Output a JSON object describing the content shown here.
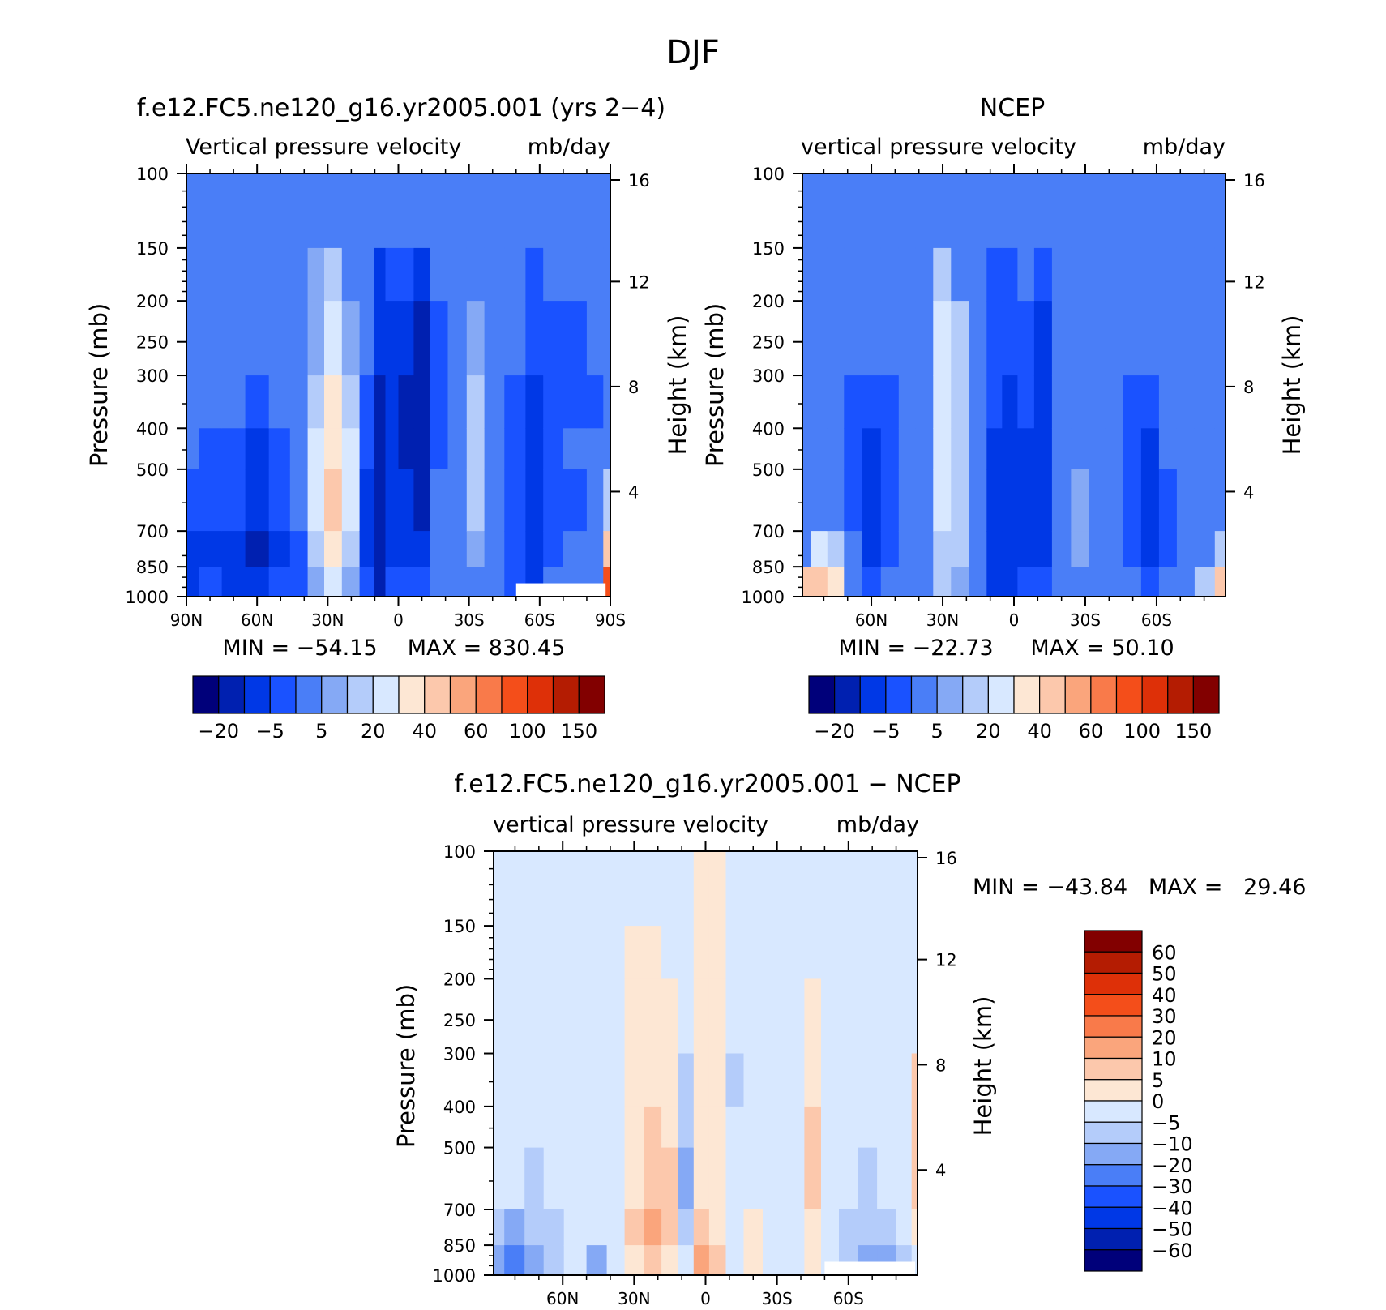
{
  "figure_title": "DJF",
  "chart_data": [
    {
      "type": "heatmap",
      "title": "f.e12.FC5.ne120_g16.yr2005.001 (yrs 2−4)",
      "left_subtitle": "Vertical pressure velocity",
      "right_subtitle": "mb/day",
      "ylabel": "Pressure (mb)",
      "y2label": "Height (km)",
      "xlabel": "",
      "x_ticks": [
        "90N",
        "60N",
        "30N",
        "0",
        "30S",
        "60S",
        "90S"
      ],
      "x_tick_values": [
        90,
        60,
        30,
        0,
        -30,
        -60,
        -90
      ],
      "xlim": [
        90,
        -90
      ],
      "y_ticks": [
        100,
        150,
        200,
        250,
        300,
        400,
        500,
        700,
        850,
        1000
      ],
      "ylim": [
        1000,
        100
      ],
      "y_scale": "log",
      "y2_ticks": [
        4,
        8,
        12,
        16
      ],
      "min_label": "MIN = −54.15",
      "max_label": "MAX = 830.45",
      "min_value": -54.15,
      "max_value": 830.45,
      "colorbar": {
        "orientation": "horizontal",
        "tick_labels": [
          "−20",
          "−5",
          "5",
          "20",
          "40",
          "60",
          "100",
          "150"
        ],
        "colors": [
          "#00007a",
          "#0020b0",
          "#0038e6",
          "#1a52ff",
          "#4a7ef7",
          "#85a9f5",
          "#b4ccfa",
          "#d8e8ff",
          "#fde7d4",
          "#fcc8ac",
          "#faa57c",
          "#f97a4a",
          "#f44e1a",
          "#de3008",
          "#b41c02",
          "#820000"
        ]
      },
      "columns": [
        {
          "lat": 89,
          "v": [
            -3,
            -3,
            -3,
            -5,
            -5,
            -10,
            -15,
            -20
          ]
        },
        {
          "lat": 80,
          "v": [
            -3,
            -3,
            -2,
            -5,
            -8,
            -10,
            -15,
            -10
          ]
        },
        {
          "lat": 70,
          "v": [
            -3,
            -3,
            -3,
            -5,
            -10,
            -10,
            -15,
            -20
          ]
        },
        {
          "lat": 60,
          "v": [
            -3,
            -3,
            -3,
            -10,
            -15,
            -20,
            -30,
            -20
          ]
        },
        {
          "lat": 50,
          "v": [
            -3,
            -3,
            -3,
            -5,
            -10,
            -10,
            -15,
            -10
          ]
        },
        {
          "lat": 42,
          "v": [
            -3,
            -3,
            -3,
            -5,
            -5,
            -5,
            -10,
            -10
          ]
        },
        {
          "lat": 35,
          "v": [
            -1,
            2,
            2,
            5,
            10,
            10,
            5,
            2
          ]
        },
        {
          "lat": 28,
          "v": [
            -1,
            5,
            10,
            20,
            25,
            30,
            25,
            10
          ]
        },
        {
          "lat": 20,
          "v": [
            -1,
            -1,
            3,
            5,
            10,
            10,
            5,
            2
          ]
        },
        {
          "lat": 13,
          "v": [
            -3,
            -5,
            -5,
            -10,
            -10,
            -15,
            -15,
            -10
          ]
        },
        {
          "lat": 8,
          "v": [
            -5,
            -15,
            -20,
            -30,
            -30,
            -40,
            -40,
            -35
          ]
        },
        {
          "lat": 3,
          "v": [
            -5,
            -10,
            -15,
            -20,
            -20,
            -20,
            -15,
            -10
          ]
        },
        {
          "lat": -3,
          "v": [
            -5,
            -10,
            -20,
            -25,
            -25,
            -20,
            -15,
            -10
          ]
        },
        {
          "lat": -10,
          "v": [
            -5,
            -20,
            -30,
            -40,
            -35,
            -30,
            -20,
            -10
          ]
        },
        {
          "lat": -17,
          "v": [
            -3,
            -5,
            -10,
            -10,
            -10,
            -5,
            -3,
            -3
          ]
        },
        {
          "lat": -25,
          "v": [
            -3,
            -3,
            -3,
            -5,
            -3,
            -3,
            -1,
            -1
          ]
        },
        {
          "lat": -33,
          "v": [
            -3,
            -3,
            2,
            5,
            5,
            5,
            3,
            -1
          ]
        },
        {
          "lat": -40,
          "v": [
            -3,
            -3,
            -3,
            -3,
            -3,
            -3,
            -3,
            -3
          ]
        },
        {
          "lat": -50,
          "v": [
            -5,
            -5,
            -5,
            -10,
            -10,
            -10,
            -10,
            -10
          ]
        },
        {
          "lat": -58,
          "v": [
            -5,
            -10,
            -10,
            -15,
            -20,
            -20,
            -20,
            -15
          ]
        },
        {
          "lat": -65,
          "v": [
            -5,
            -5,
            -10,
            -10,
            -10,
            -10,
            -10,
            -5
          ]
        },
        {
          "lat": -75,
          "v": [
            -5,
            -5,
            -10,
            -10,
            -5,
            -10,
            -5,
            -5
          ]
        },
        {
          "lat": -85,
          "v": [
            -5,
            -5,
            -5,
            -10,
            -5,
            -5,
            -5,
            -3
          ]
        },
        {
          "lat": -89,
          "v": [
            -5,
            -3,
            -3,
            -3,
            -3,
            5,
            30,
            60
          ]
        }
      ]
    },
    {
      "type": "heatmap",
      "title": "NCEP",
      "left_subtitle": "vertical pressure velocity",
      "right_subtitle": "mb/day",
      "ylabel": "Pressure (mb)",
      "y2label": "Height (km)",
      "xlabel": "",
      "x_ticks": [
        "60N",
        "30N",
        "0",
        "30S",
        "60S"
      ],
      "x_tick_values": [
        60,
        30,
        0,
        -30,
        -60
      ],
      "xlim": [
        89,
        -89
      ],
      "y_ticks": [
        100,
        150,
        200,
        250,
        300,
        400,
        500,
        700,
        850,
        1000
      ],
      "ylim": [
        1000,
        100
      ],
      "y_scale": "log",
      "y2_ticks": [
        4,
        8,
        12,
        16
      ],
      "min_label": "MIN = −22.73",
      "max_label": "MAX = 50.10",
      "min_value": -22.73,
      "max_value": 50.1,
      "colorbar": {
        "orientation": "horizontal",
        "tick_labels": [
          "−20",
          "−5",
          "5",
          "20",
          "40",
          "60",
          "100",
          "150"
        ],
        "colors": [
          "#00007a",
          "#0020b0",
          "#0038e6",
          "#1a52ff",
          "#4a7ef7",
          "#85a9f5",
          "#b4ccfa",
          "#d8e8ff",
          "#fde7d4",
          "#fcc8ac",
          "#faa57c",
          "#f97a4a",
          "#f44e1a",
          "#de3008",
          "#b41c02",
          "#820000"
        ]
      },
      "columns": [
        {
          "lat": 89,
          "v": [
            -5,
            -5,
            -5,
            -5,
            -5,
            -3,
            -1,
            30
          ]
        },
        {
          "lat": 82,
          "v": [
            -5,
            -5,
            -5,
            -5,
            -3,
            -1,
            10,
            30
          ]
        },
        {
          "lat": 75,
          "v": [
            -5,
            -5,
            -5,
            -5,
            -3,
            -3,
            5,
            20
          ]
        },
        {
          "lat": 68,
          "v": [
            -5,
            -5,
            -5,
            -10,
            -10,
            -10,
            -5,
            -3
          ]
        },
        {
          "lat": 60,
          "v": [
            -5,
            -5,
            -5,
            -10,
            -15,
            -15,
            -20,
            -10
          ]
        },
        {
          "lat": 52,
          "v": [
            -5,
            -5,
            -5,
            -10,
            -10,
            -10,
            -10,
            -5
          ]
        },
        {
          "lat": 45,
          "v": [
            -5,
            -5,
            -5,
            -5,
            -5,
            -5,
            -5,
            -3
          ]
        },
        {
          "lat": 38,
          "v": [
            -5,
            -3,
            -3,
            -3,
            -3,
            -3,
            -3,
            -3
          ]
        },
        {
          "lat": 30,
          "v": [
            -3,
            5,
            10,
            10,
            10,
            10,
            5,
            5
          ]
        },
        {
          "lat": 23,
          "v": [
            -3,
            -3,
            5,
            5,
            5,
            5,
            5,
            3
          ]
        },
        {
          "lat": 15,
          "v": [
            -5,
            -5,
            -5,
            -5,
            -5,
            -5,
            -5,
            -5
          ]
        },
        {
          "lat": 8,
          "v": [
            -5,
            -10,
            -10,
            -10,
            -15,
            -20,
            -20,
            -15
          ]
        },
        {
          "lat": 2,
          "v": [
            -5,
            -10,
            -10,
            -15,
            -15,
            -20,
            -20,
            -15
          ]
        },
        {
          "lat": -5,
          "v": [
            -5,
            -5,
            -10,
            -10,
            -15,
            -15,
            -15,
            -10
          ]
        },
        {
          "lat": -12,
          "v": [
            -5,
            -10,
            -15,
            -20,
            -20,
            -15,
            -15,
            -10
          ]
        },
        {
          "lat": -20,
          "v": [
            -5,
            -5,
            -5,
            -5,
            -5,
            -5,
            -5,
            -5
          ]
        },
        {
          "lat": -28,
          "v": [
            -5,
            -5,
            -3,
            -3,
            -1,
            2,
            1,
            -1
          ]
        },
        {
          "lat": -35,
          "v": [
            -5,
            -5,
            -5,
            -3,
            -3,
            -3,
            -3,
            -3
          ]
        },
        {
          "lat": -42,
          "v": [
            -5,
            -5,
            -5,
            -5,
            -5,
            -5,
            -5,
            -5
          ]
        },
        {
          "lat": -50,
          "v": [
            -5,
            -5,
            -5,
            -10,
            -10,
            -10,
            -10,
            -5
          ]
        },
        {
          "lat": -57,
          "v": [
            -5,
            -5,
            -5,
            -10,
            -15,
            -15,
            -15,
            -10
          ]
        },
        {
          "lat": -65,
          "v": [
            -5,
            -5,
            -5,
            -5,
            -5,
            -10,
            -10,
            -5
          ]
        },
        {
          "lat": -72,
          "v": [
            -5,
            -5,
            -5,
            -5,
            -3,
            -3,
            -3,
            -3
          ]
        },
        {
          "lat": -80,
          "v": [
            -5,
            -5,
            -5,
            -3,
            -3,
            -3,
            -1,
            5
          ]
        },
        {
          "lat": -89,
          "v": [
            -5,
            -5,
            -3,
            -3,
            -3,
            -3,
            5,
            30
          ]
        }
      ]
    },
    {
      "type": "heatmap",
      "title": "f.e12.FC5.ne120_g16.yr2005.001 − NCEP",
      "left_subtitle": "vertical pressure velocity",
      "right_subtitle": "mb/day",
      "ylabel": "Pressure (mb)",
      "y2label": "Height (km)",
      "xlabel": "",
      "x_ticks": [
        "60N",
        "30N",
        "0",
        "30S",
        "60S"
      ],
      "x_tick_values": [
        60,
        30,
        0,
        -30,
        -60
      ],
      "xlim": [
        89,
        -89
      ],
      "y_ticks": [
        100,
        150,
        200,
        250,
        300,
        400,
        500,
        700,
        850,
        1000
      ],
      "ylim": [
        1000,
        100
      ],
      "y_scale": "log",
      "y2_ticks": [
        4,
        8,
        12,
        16
      ],
      "min_max_label": "MIN = −43.84   MAX =   29.46",
      "min_value": -43.84,
      "max_value": 29.46,
      "colorbar": {
        "orientation": "vertical",
        "tick_labels": [
          "60",
          "50",
          "40",
          "30",
          "20",
          "10",
          "5",
          "0",
          "−5",
          "−10",
          "−20",
          "−30",
          "−40",
          "−50",
          "−60"
        ],
        "colors": [
          "#820000",
          "#b41c02",
          "#de3008",
          "#f44e1a",
          "#f97a4a",
          "#faa57c",
          "#fcc8ac",
          "#fde7d4",
          "#d8e8ff",
          "#b4ccfa",
          "#85a9f5",
          "#4a7ef7",
          "#1a52ff",
          "#0038e6",
          "#0020b0",
          "#00007a"
        ]
      },
      "columns": [
        {
          "lat": 89,
          "v": [
            -2,
            -2,
            -2,
            -2,
            -2,
            -2,
            -10,
            -20
          ]
        },
        {
          "lat": 80,
          "v": [
            -2,
            -2,
            -2,
            -2,
            -2,
            -2,
            -15,
            -30
          ]
        },
        {
          "lat": 72,
          "v": [
            -2,
            -2,
            -2,
            -2,
            -2,
            -8,
            -10,
            -20
          ]
        },
        {
          "lat": 64,
          "v": [
            -2,
            -2,
            -2,
            -2,
            -2,
            -2,
            -8,
            -10
          ]
        },
        {
          "lat": 55,
          "v": [
            -2,
            -2,
            -2,
            -2,
            -2,
            -2,
            -2,
            -5
          ]
        },
        {
          "lat": 45,
          "v": [
            -2,
            -2,
            -2,
            -2,
            -2,
            -2,
            -5,
            -15
          ]
        },
        {
          "lat": 38,
          "v": [
            -2,
            -2,
            -2,
            -2,
            -2,
            -2,
            -2,
            -2
          ]
        },
        {
          "lat": 30,
          "v": [
            -2,
            2,
            2,
            2,
            2,
            2,
            5,
            2
          ]
        },
        {
          "lat": 22,
          "v": [
            -2,
            2,
            2,
            2,
            5,
            8,
            10,
            5
          ]
        },
        {
          "lat": 15,
          "v": [
            -2,
            -2,
            2,
            2,
            2,
            5,
            5,
            2
          ]
        },
        {
          "lat": 8,
          "v": [
            -2,
            -2,
            -5,
            -8,
            -10,
            -12,
            -8,
            -2
          ]
        },
        {
          "lat": 2,
          "v": [
            2,
            2,
            2,
            2,
            2,
            2,
            5,
            15
          ]
        },
        {
          "lat": -5,
          "v": [
            2,
            2,
            2,
            2,
            2,
            2,
            2,
            5
          ]
        },
        {
          "lat": -12,
          "v": [
            -2,
            -2,
            -5,
            -8,
            -5,
            -2,
            -2,
            -2
          ]
        },
        {
          "lat": -20,
          "v": [
            -2,
            -2,
            -2,
            -2,
            -2,
            -2,
            2,
            2
          ]
        },
        {
          "lat": -28,
          "v": [
            -2,
            -2,
            -2,
            -2,
            -2,
            -2,
            -2,
            -2
          ]
        },
        {
          "lat": -38,
          "v": [
            -2,
            -2,
            -2,
            -2,
            -2,
            -2,
            -2,
            -2
          ]
        },
        {
          "lat": -45,
          "v": [
            -2,
            -2,
            2,
            2,
            5,
            5,
            2,
            2
          ]
        },
        {
          "lat": -52,
          "v": [
            -2,
            -2,
            -2,
            -2,
            -2,
            -2,
            -2,
            -2
          ]
        },
        {
          "lat": -60,
          "v": [
            -2,
            -2,
            -2,
            -2,
            -2,
            -5,
            -8,
            -10
          ]
        },
        {
          "lat": -68,
          "v": [
            -2,
            -2,
            -2,
            -2,
            -5,
            -8,
            -10,
            -20
          ]
        },
        {
          "lat": -76,
          "v": [
            -2,
            -2,
            -2,
            -2,
            -2,
            -5,
            -8,
            -15
          ]
        },
        {
          "lat": -84,
          "v": [
            -2,
            -2,
            -2,
            -2,
            -5,
            -5,
            -5,
            -10
          ]
        },
        {
          "lat": -89,
          "v": [
            -2,
            -2,
            -2,
            5,
            5,
            5,
            2,
            -5
          ]
        }
      ]
    }
  ]
}
